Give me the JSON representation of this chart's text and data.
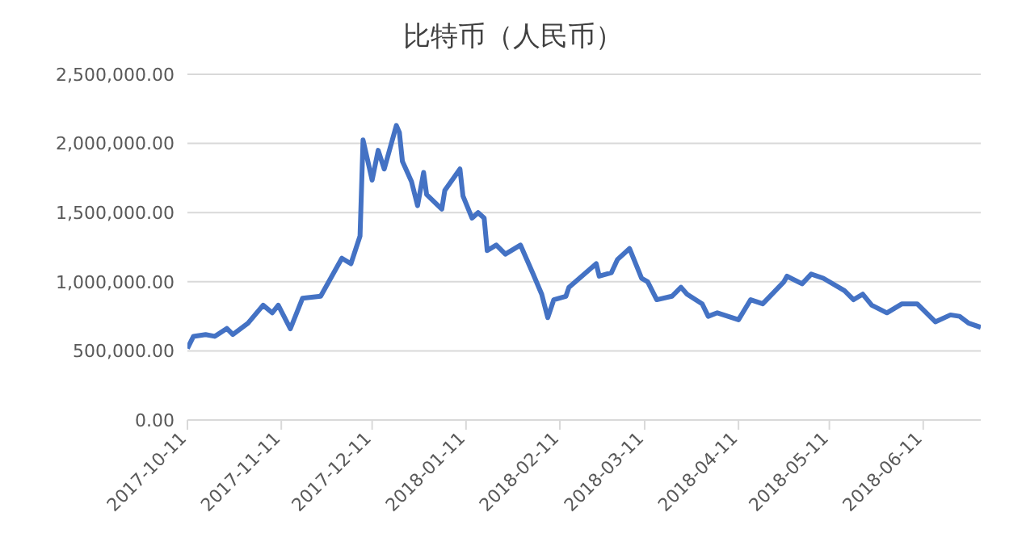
{
  "chart_data": {
    "type": "line",
    "title": "比特币（人民币）",
    "x": [
      "2017-10-11",
      "2017-10-13",
      "2017-10-17",
      "2017-10-20",
      "2017-10-24",
      "2017-10-26",
      "2017-10-31",
      "2017-11-05",
      "2017-11-08",
      "2017-11-10",
      "2017-11-14",
      "2017-11-18",
      "2017-11-24",
      "2017-12-01",
      "2017-12-04",
      "2017-12-07",
      "2017-12-08",
      "2017-12-11",
      "2017-12-13",
      "2017-12-15",
      "2017-12-19",
      "2017-12-20",
      "2017-12-21",
      "2017-12-24",
      "2017-12-26",
      "2017-12-28",
      "2017-12-29",
      "2018-01-03",
      "2018-01-04",
      "2018-01-09",
      "2018-01-10",
      "2018-01-13",
      "2018-01-15",
      "2018-01-17",
      "2018-01-18",
      "2018-01-21",
      "2018-01-24",
      "2018-01-29",
      "2018-02-02",
      "2018-02-05",
      "2018-02-07",
      "2018-02-09",
      "2018-02-13",
      "2018-02-14",
      "2018-02-23",
      "2018-02-24",
      "2018-02-28",
      "2018-03-02",
      "2018-03-06",
      "2018-03-10",
      "2018-03-12",
      "2018-03-15",
      "2018-03-20",
      "2018-03-23",
      "2018-03-25",
      "2018-03-30",
      "2018-04-01",
      "2018-04-04",
      "2018-04-11",
      "2018-04-15",
      "2018-04-19",
      "2018-04-26",
      "2018-04-27",
      "2018-05-02",
      "2018-05-05",
      "2018-05-09",
      "2018-05-16",
      "2018-05-19",
      "2018-05-22",
      "2018-05-25",
      "2018-05-30",
      "2018-06-04",
      "2018-06-09",
      "2018-06-15",
      "2018-06-20",
      "2018-06-23",
      "2018-06-26",
      "2018-06-30"
    ],
    "series": [
      {
        "color": "#4472c4",
        "values": [
          517000,
          605000,
          618000,
          605000,
          662000,
          618000,
          700000,
          830000,
          775000,
          830000,
          660000,
          880000,
          895000,
          1170000,
          1130000,
          1330000,
          2025000,
          1735000,
          1950000,
          1815000,
          2130000,
          2080000,
          1870000,
          1725000,
          1550000,
          1790000,
          1630000,
          1525000,
          1660000,
          1815000,
          1620000,
          1460000,
          1500000,
          1460000,
          1225000,
          1265000,
          1200000,
          1265000,
          1065000,
          910000,
          740000,
          870000,
          895000,
          960000,
          1130000,
          1040000,
          1065000,
          1160000,
          1240000,
          1025000,
          1000000,
          870000,
          895000,
          960000,
          910000,
          840000,
          750000,
          775000,
          725000,
          870000,
          840000,
          1000000,
          1040000,
          985000,
          1055000,
          1025000,
          935000,
          870000,
          910000,
          830000,
          775000,
          840000,
          840000,
          710000,
          760000,
          750000,
          700000,
          670000
        ]
      }
    ],
    "xlim": [
      "2017-10-11",
      "2018-06-30"
    ],
    "xticks": [
      "2017-10-11",
      "2017-11-11",
      "2017-12-11",
      "2018-01-11",
      "2018-02-11",
      "2018-03-11",
      "2018-04-11",
      "2018-05-11",
      "2018-06-11"
    ],
    "ylim": [
      0,
      2500000
    ],
    "yticks": [
      {
        "value": 0,
        "label": "0.00"
      },
      {
        "value": 500000,
        "label": "500,000.00"
      },
      {
        "value": 1000000,
        "label": "1,000,000.00"
      },
      {
        "value": 1500000,
        "label": "1,500,000.00"
      },
      {
        "value": 2000000,
        "label": "2,000,000.00"
      },
      {
        "value": 2500000,
        "label": "2,500,000.00"
      }
    ],
    "grid": "y",
    "marker": "none",
    "line_style": "solid"
  }
}
